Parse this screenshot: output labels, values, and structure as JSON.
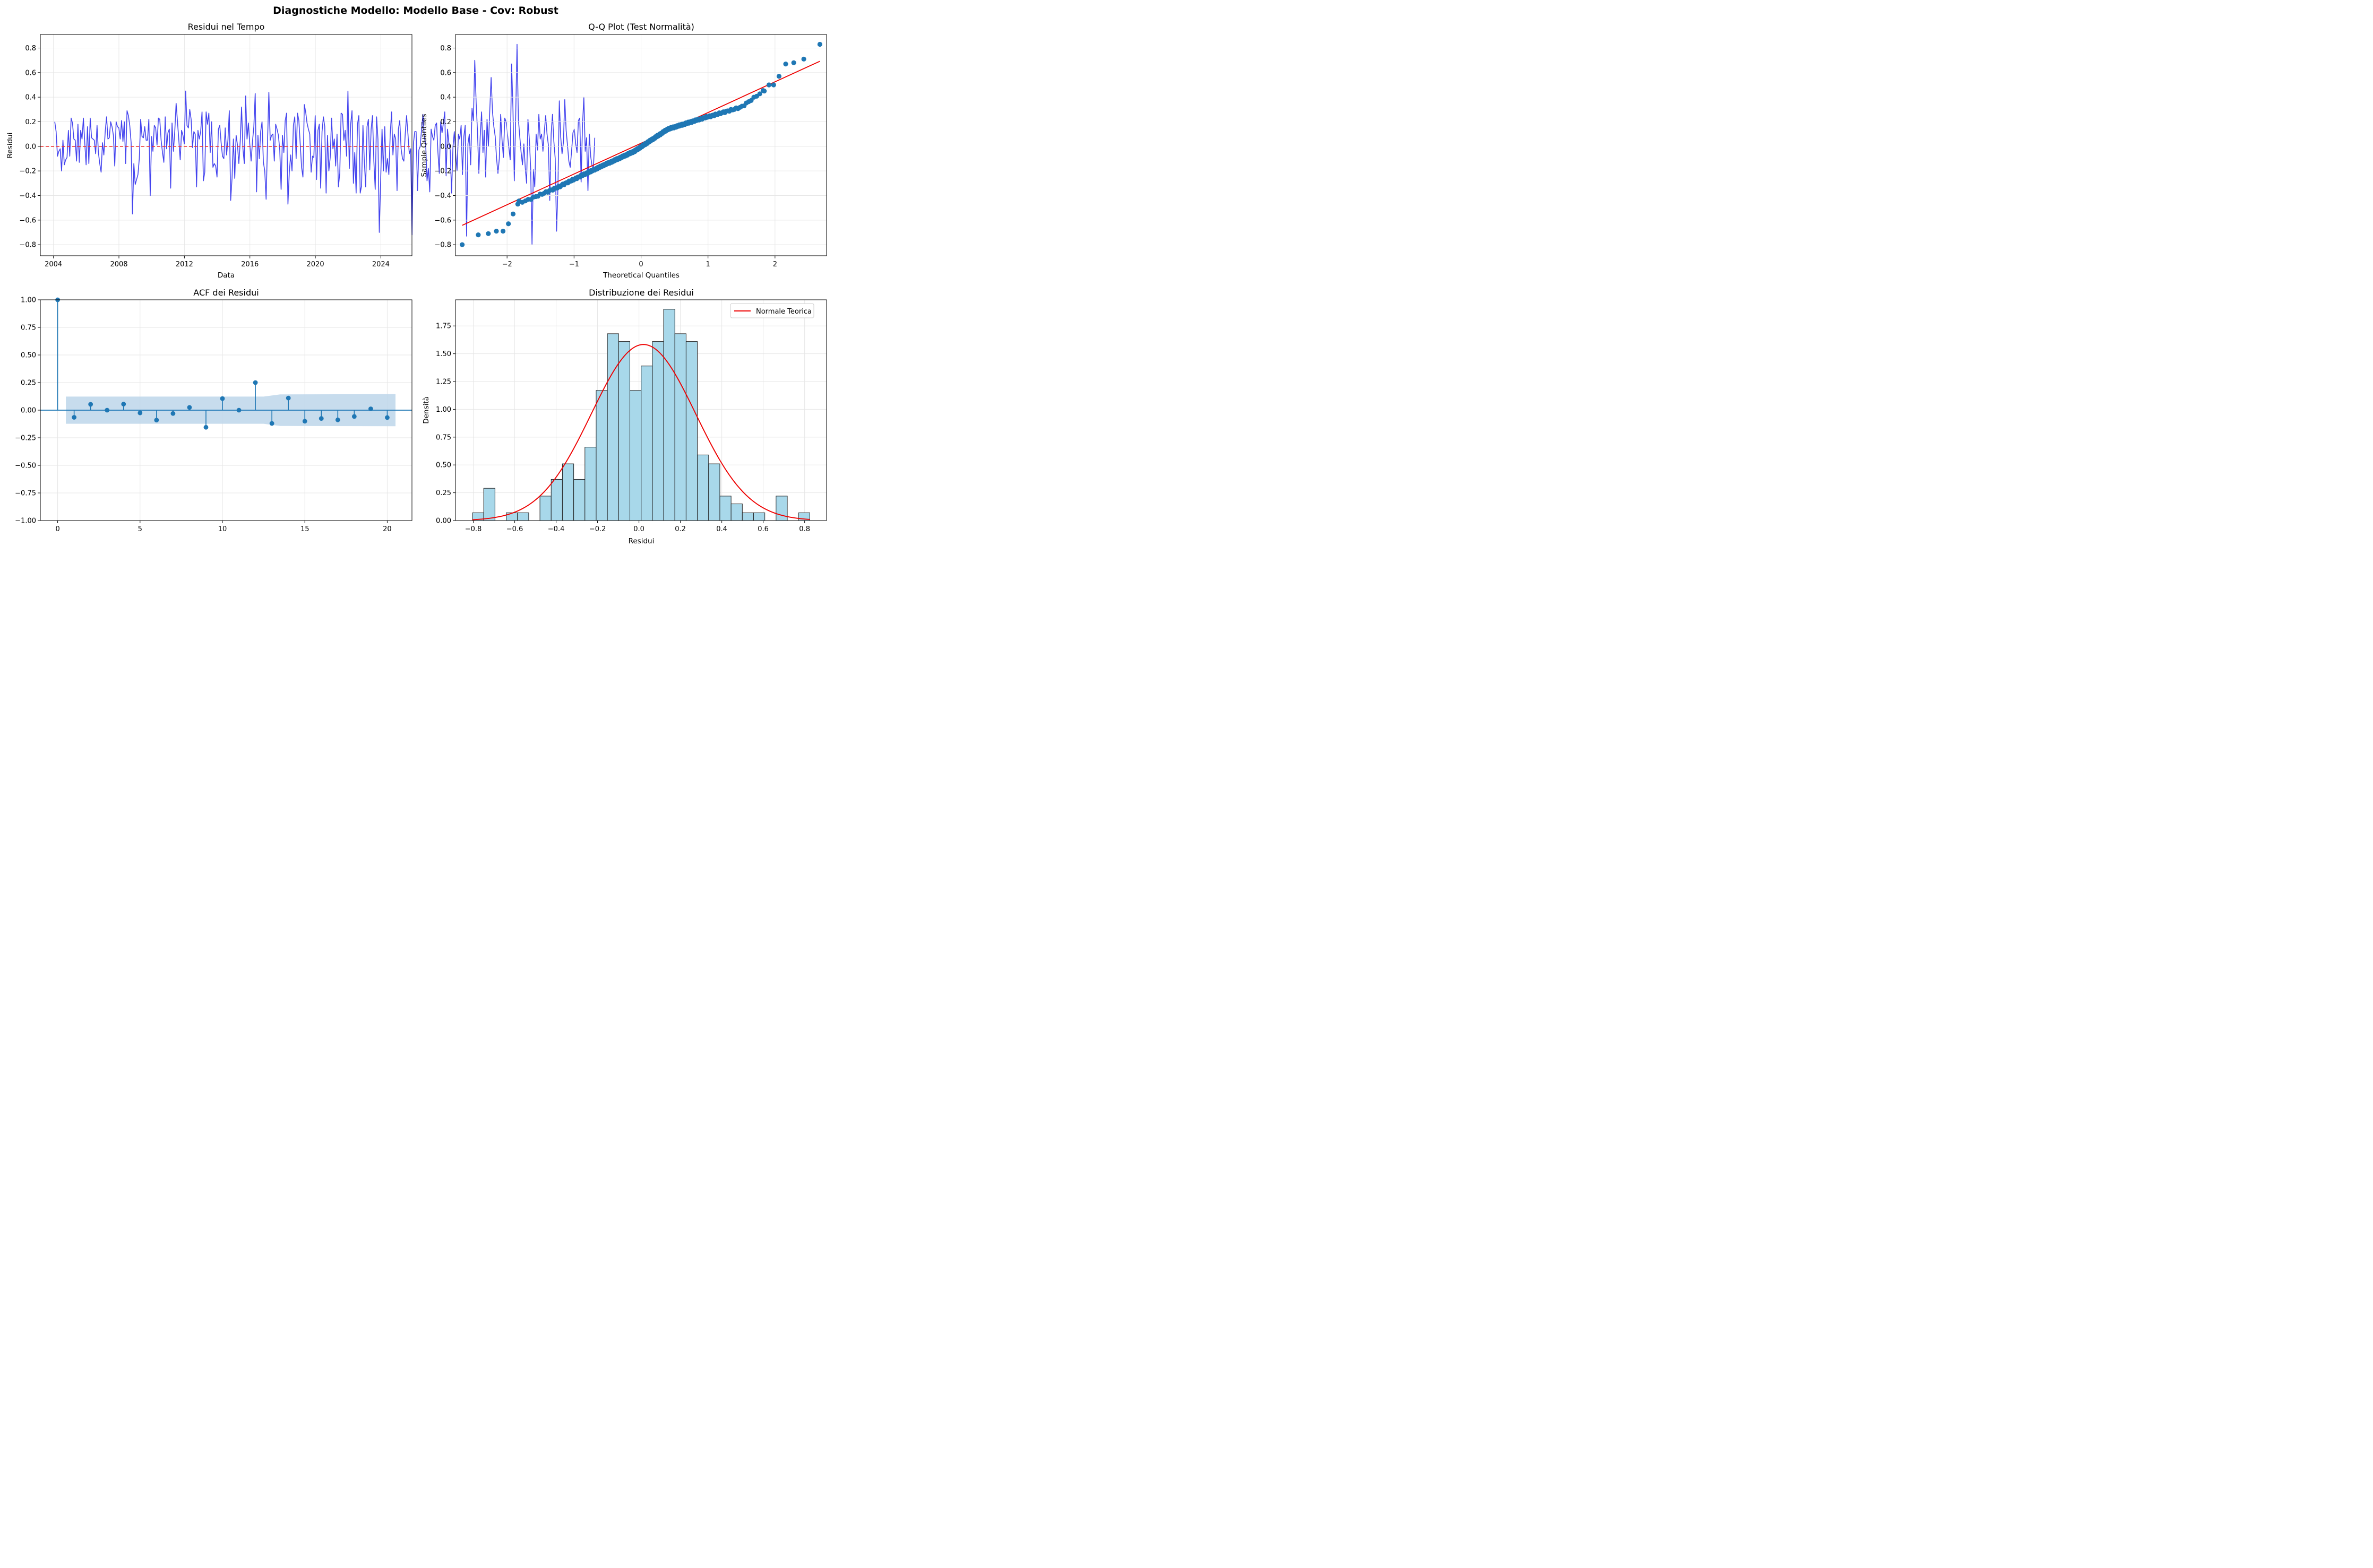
{
  "suptitle": "Diagnostiche Modello: Modello Base - Cov: Robust",
  "colors": {
    "residual_line": "#4444ee",
    "zero_line": "#ee3333",
    "qq_points": "#1f77b4",
    "qq_line": "#ee0000",
    "acf": "#1f77b4",
    "acf_band": "#bdd6ea",
    "hist_fill": "#a8d8ea",
    "hist_edge": "#222222",
    "normal_curve": "#ee0000",
    "grid": "#e6e6e6"
  },
  "chart_data": [
    {
      "type": "line",
      "title": "Residui nel Tempo",
      "xlabel": "Data",
      "ylabel": "Residui",
      "xlim": [
        2003.2,
        2025.9
      ],
      "ylim": [
        -0.89,
        0.91
      ],
      "xticks": [
        2004,
        2008,
        2012,
        2016,
        2020,
        2024
      ],
      "xtick_labels": [
        "2004",
        "2008",
        "2012",
        "2016",
        "2020",
        "2024"
      ],
      "yticks": [
        -0.8,
        -0.6,
        -0.4,
        -0.2,
        0.0,
        0.2,
        0.4,
        0.6,
        0.8
      ],
      "ytick_labels": [
        "−0.8",
        "−0.6",
        "−0.4",
        "−0.2",
        "0.0",
        "0.2",
        "0.4",
        "0.6",
        "0.8"
      ],
      "reference_line": {
        "y": 0,
        "style": "dashed"
      },
      "grid": true,
      "x_start": 2004.08,
      "x_step": 0.0833,
      "values": [
        0.2,
        0.12,
        -0.08,
        -0.04,
        -0.02,
        -0.2,
        0.05,
        -0.15,
        -0.11,
        -0.09,
        0.13,
        -0.08,
        0.23,
        0.19,
        0.06,
        0.05,
        -0.12,
        0.18,
        -0.13,
        0.13,
        0.06,
        0.23,
        0.03,
        -0.15,
        0.16,
        -0.14,
        0.23,
        0.07,
        0.06,
        0.05,
        -0.06,
        0.17,
        -0.05,
        -0.14,
        -0.21,
        0.03,
        -0.07,
        0.12,
        0.24,
        0.06,
        0.07,
        0.2,
        0.16,
        0.09,
        -0.16,
        0.2,
        0.16,
        0.15,
        0.06,
        0.21,
        0.04,
        0.2,
        -0.14,
        0.29,
        0.25,
        0.17,
        0.03,
        -0.55,
        -0.14,
        -0.31,
        -0.27,
        -0.23,
        -0.1,
        0.22,
        0.08,
        0.07,
        0.16,
        0.05,
        0.05,
        0.22,
        -0.4,
        0.08,
        -0.04,
        0.17,
        0.15,
        0.01,
        0.23,
        0.22,
        0.05,
        -0.05,
        -0.13,
        0.24,
        -0.02,
        0.11,
        0.14,
        -0.34,
        0.19,
        -0.04,
        0.12,
        0.35,
        0.2,
        0.05,
        -0.11,
        0.13,
        0.09,
        0.02,
        0.45,
        0.17,
        0.15,
        0.3,
        0.22,
        -0.01,
        0.12,
        0.1,
        -0.33,
        0.13,
        0.06,
        0.12,
        0.28,
        -0.28,
        -0.21,
        0.28,
        0.18,
        0.27,
        -0.05,
        0.2,
        -0.17,
        -0.14,
        -0.16,
        -0.25,
        0.14,
        0.17,
        0.03,
        -0.08,
        -0.1,
        0.15,
        -0.07,
        0.05,
        0.29,
        -0.44,
        -0.26,
        0.06,
        -0.26,
        0.09,
        0.01,
        -0.14,
        0.04,
        0.32,
        -0.02,
        -0.14,
        0.41,
        0.06,
        0.19,
        0.02,
        -0.12,
        0.04,
        0.16,
        0.43,
        -0.37,
        0.09,
        -0.1,
        0.12,
        0.2,
        -0.13,
        -0.2,
        -0.43,
        0.02,
        0.44,
        0.05,
        0.09,
        0.1,
        -0.12,
        0.18,
        0.14,
        0.09,
        -0.03,
        -0.35,
        0.09,
        -0.05,
        0.21,
        0.27,
        -0.47,
        -0.21,
        -0.07,
        -0.2,
        0.17,
        0.24,
        -0.1,
        0.27,
        0.21,
        0.02,
        -0.17,
        -0.25,
        0.34,
        0.28,
        0.19,
        0.14,
        0.1,
        -0.21,
        -0.08,
        -0.09,
        0.25,
        -0.27,
        0.13,
        0.18,
        -0.34,
        0.12,
        0.24,
        0.16,
        -0.38,
        0.09,
        -0.2,
        -0.09,
        0.23,
        -0.02,
        0.06,
        -0.16,
        0.1,
        -0.33,
        -0.22,
        0.27,
        0.26,
        0.05,
        0.13,
        -0.08,
        0.45,
        -0.18,
        0.18,
        0.29,
        -0.3,
        -0.05,
        -0.38,
        0.18,
        0.25,
        -0.38,
        -0.32,
        0.17,
        -0.12,
        -0.33,
        0.16,
        0.22,
        -0.19,
        0.14,
        0.25,
        -0.12,
        -0.35,
        0.24,
        0.06,
        -0.7,
        -0.27,
        0.14,
        -0.2,
        0.16,
        -0.21,
        -0.1,
        -0.23,
        0.1,
        0.28,
        -0.07,
        0.1,
        0.06,
        -0.36,
        0.14,
        0.21,
        -0.02,
        -0.1,
        -0.12,
        0.1,
        0.25,
        0.1,
        -0.06,
        -0.02,
        -0.72,
        0.02,
        0.12,
        0.12,
        -0.36,
        -0.03,
        0.0,
        0.14,
        0.26,
        0.07,
        0.02,
        -0.28,
        -0.18,
        -0.37,
        0.14,
        0.08,
        0.05,
        0.17,
        0.19,
        -0.05,
        -0.22,
        0.2,
        0.11,
        0.19,
        0.28,
        -0.24,
        0.14,
        0.03,
        -0.03,
        -0.38,
        -0.01,
        0.12,
        -0.06,
        -0.2,
        0.1,
        0.06,
        0.17,
        -0.23,
        0.08,
        0.17,
        -0.73,
        0.02,
        0.1,
        -0.15,
        0.31,
        0.21,
        0.7,
        0.36,
        0.12,
        -0.22,
        0.08,
        0.28,
        -0.05,
        0.13,
        -0.25,
        0.22,
        0.0,
        0.29,
        0.56,
        0.28,
        0.16,
        0.08,
        -0.1,
        -0.22,
        -0.1,
        0.26,
        0.05,
        -0.09,
        0.23,
        0.2,
        0.1,
        -0.01,
        -0.11,
        0.67,
        0.31,
        -0.28,
        0.23,
        0.83,
        0.22,
        0.08,
        -0.05,
        -0.15,
        0.02,
        -0.17,
        -0.3,
        0.22,
        0.06,
        -0.18,
        -0.8,
        -0.19,
        -0.33,
        0.1,
        -0.03,
        0.26,
        0.06,
        0.1,
        -0.04,
        0.12,
        0.25,
        0.1,
        0.01,
        -0.44,
        0.1,
        0.26,
        0.04,
        -0.1,
        -0.69,
        -0.33,
        0.37,
        0.08,
        -0.06,
        0.03,
        0.38,
        0.13,
        0.01,
        -0.12,
        -0.17,
        -0.04,
        0.11,
        0.14,
        0.02,
        -0.05,
        0.21,
        0.23,
        -0.29,
        0.17,
        0.4,
        -0.04,
        0.07,
        -0.36,
        0.1,
        -0.08,
        -0.16,
        -0.18,
        0.07
      ]
    },
    {
      "type": "scatter",
      "title": "Q-Q Plot (Test Normalità)",
      "xlabel": "Theoretical Quantiles",
      "ylabel": "Sample Quantiles",
      "xlim": [
        -2.77,
        2.77
      ],
      "ylim": [
        -0.89,
        0.91
      ],
      "xticks": [
        -2,
        -1,
        0,
        1,
        2
      ],
      "xtick_labels": [
        "−2",
        "−1",
        "0",
        "1",
        "2"
      ],
      "yticks": [
        -0.8,
        -0.6,
        -0.4,
        -0.2,
        0.0,
        0.2,
        0.4,
        0.6,
        0.8
      ],
      "ytick_labels": [
        "−0.8",
        "−0.6",
        "−0.4",
        "−0.2",
        "0.0",
        "0.2",
        "0.4",
        "0.6",
        "0.8"
      ],
      "grid": true,
      "n_points": 252,
      "fit_line": {
        "intercept": 0.025,
        "slope": 0.25
      },
      "outliers_low": [
        [
          -2.67,
          -0.8
        ],
        [
          -2.43,
          -0.72
        ],
        [
          -2.28,
          -0.71
        ],
        [
          -2.16,
          -0.69
        ],
        [
          -2.06,
          -0.69
        ],
        [
          -1.98,
          -0.63
        ],
        [
          -1.91,
          -0.55
        ],
        [
          -1.84,
          -0.47
        ]
      ],
      "outliers_high": [
        [
          1.84,
          0.45
        ],
        [
          1.91,
          0.5
        ],
        [
          1.98,
          0.5
        ],
        [
          2.06,
          0.57
        ],
        [
          2.16,
          0.67
        ],
        [
          2.28,
          0.68
        ],
        [
          2.43,
          0.71
        ],
        [
          2.67,
          0.83
        ]
      ]
    },
    {
      "type": "bar",
      "subtype": "acf-stem",
      "title": "ACF dei Residui",
      "xlim": [
        -1.05,
        21.5
      ],
      "ylim": [
        -1.0,
        1.0
      ],
      "xticks": [
        0,
        5,
        10,
        15,
        20
      ],
      "xtick_labels": [
        "0",
        "5",
        "10",
        "15",
        "20"
      ],
      "yticks": [
        -1.0,
        -0.75,
        -0.5,
        -0.25,
        0.0,
        0.25,
        0.5,
        0.75,
        1.0
      ],
      "ytick_labels": [
        "−1.00",
        "−0.75",
        "−0.50",
        "−0.25",
        "0.00",
        "0.25",
        "0.50",
        "0.75",
        "1.00"
      ],
      "grid": true,
      "lags": [
        0,
        1,
        2,
        3,
        4,
        5,
        6,
        7,
        8,
        9,
        10,
        11,
        12,
        13,
        14,
        15,
        16,
        17,
        18,
        19,
        20
      ],
      "values": [
        1.0,
        -0.065,
        0.053,
        0.0,
        0.055,
        -0.025,
        -0.09,
        -0.03,
        0.025,
        -0.155,
        0.105,
        0.0,
        0.25,
        -0.12,
        0.11,
        -0.1,
        -0.075,
        -0.088,
        -0.057,
        0.012,
        -0.067
      ],
      "confidence_band": {
        "lag_start": 0.5,
        "lag_end": 20.5,
        "lower_start": -0.123,
        "upper_start": 0.123,
        "lower_end": -0.145,
        "upper_end": 0.145
      }
    },
    {
      "type": "bar",
      "subtype": "histogram",
      "title": "Distribuzione dei Residui",
      "xlabel": "Residui",
      "ylabel": "Densità",
      "xlim": [
        -0.886,
        0.906
      ],
      "ylim": [
        0,
        1.985
      ],
      "xticks": [
        -0.8,
        -0.6,
        -0.4,
        -0.2,
        0.0,
        0.2,
        0.4,
        0.6,
        0.8
      ],
      "xtick_labels": [
        "−0.8",
        "−0.6",
        "−0.4",
        "−0.2",
        "0.0",
        "0.2",
        "0.4",
        "0.6",
        "0.8"
      ],
      "yticks": [
        0.0,
        0.25,
        0.5,
        0.75,
        1.0,
        1.25,
        1.5,
        1.75
      ],
      "ytick_labels": [
        "0.00",
        "0.25",
        "0.50",
        "0.75",
        "1.00",
        "1.25",
        "1.50",
        "1.75"
      ],
      "grid": true,
      "bin_start": -0.804,
      "bin_width": 0.0543,
      "densities": [
        0.07,
        0.29,
        0.0,
        0.07,
        0.07,
        0.0,
        0.22,
        0.37,
        0.51,
        0.37,
        0.66,
        1.17,
        1.68,
        1.61,
        1.17,
        1.39,
        1.61,
        1.9,
        1.68,
        1.61,
        0.59,
        0.51,
        0.22,
        0.15,
        0.07,
        0.07,
        0.0,
        0.22,
        0.0,
        0.07
      ],
      "normal_curve": {
        "name": "Normale Teorica",
        "mean": 0.022,
        "std": 0.252
      },
      "legend": {
        "position": "upper right",
        "entries": [
          "Normale Teorica"
        ]
      }
    }
  ]
}
